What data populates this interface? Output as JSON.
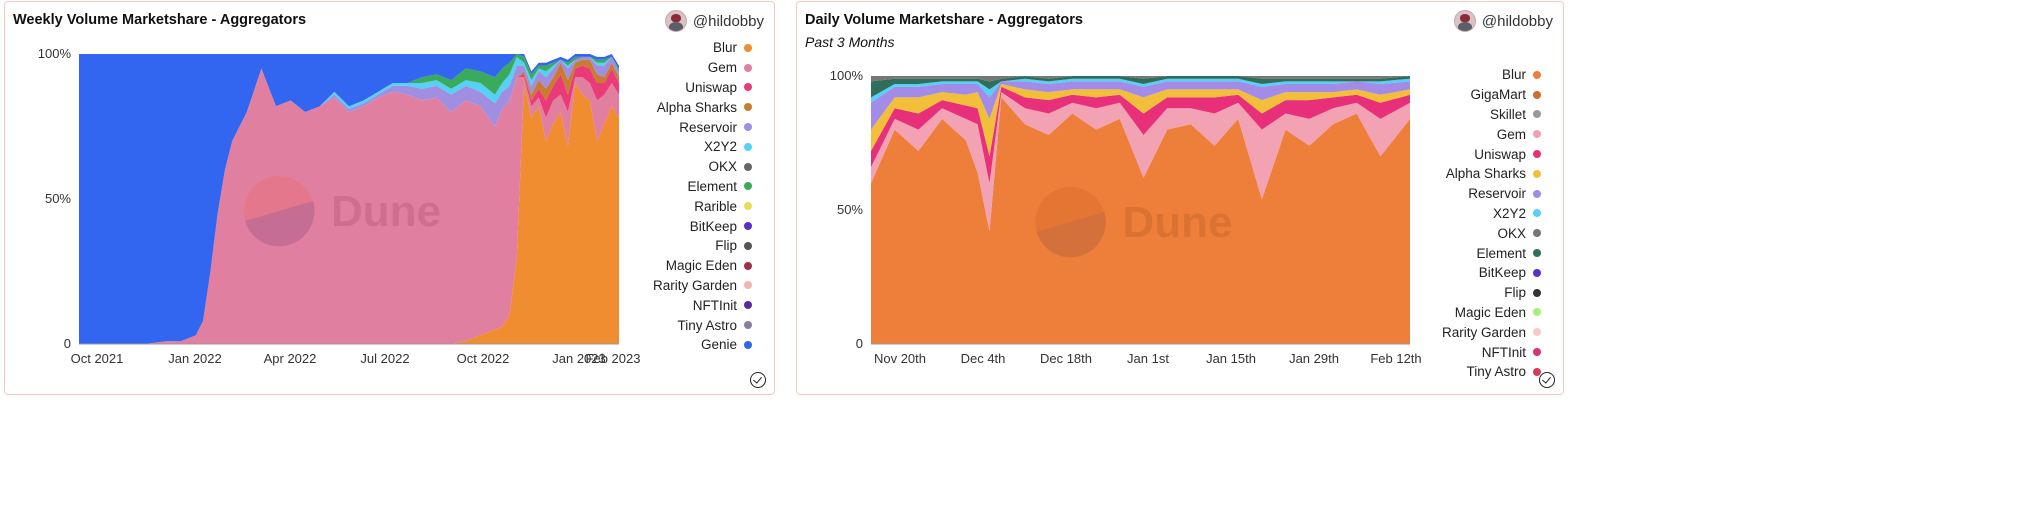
{
  "charts": [
    {
      "title": "Weekly Volume Marketshare - Aggregators",
      "subtitle": "",
      "user": "@hildobby",
      "watermark": "Dune",
      "y_ticks": [
        "100%",
        "50%",
        "0"
      ],
      "x_ticks": [
        "Oct 2021",
        "Jan 2022",
        "Apr 2022",
        "Jul 2022",
        "Oct 2022",
        "Jan 2023",
        "Feb 2023"
      ],
      "legend": [
        {
          "name": "Blur",
          "color": "#ef8d30"
        },
        {
          "name": "Gem",
          "color": "#e07fa0"
        },
        {
          "name": "Uniswap",
          "color": "#ea3b78"
        },
        {
          "name": "Alpha Sharks",
          "color": "#c97b2e"
        },
        {
          "name": "Reservoir",
          "color": "#a08ee0"
        },
        {
          "name": "X2Y2",
          "color": "#56d0f5"
        },
        {
          "name": "OKX",
          "color": "#666666"
        },
        {
          "name": "Element",
          "color": "#3aaa5c"
        },
        {
          "name": "Rarible",
          "color": "#e8dc5a"
        },
        {
          "name": "BitKeep",
          "color": "#5a2fc8"
        },
        {
          "name": "Flip",
          "color": "#555555"
        },
        {
          "name": "Magic Eden",
          "color": "#a0304a"
        },
        {
          "name": "Rarity Garden",
          "color": "#f4b2b2"
        },
        {
          "name": "NFTInit",
          "color": "#5a2a9a"
        },
        {
          "name": "Tiny Astro",
          "color": "#8a7ea0"
        },
        {
          "name": "Genie",
          "color": "#3366f0"
        }
      ]
    },
    {
      "title": "Daily Volume Marketshare - Aggregators",
      "subtitle": "Past 3 Months",
      "user": "@hildobby",
      "watermark": "Dune",
      "y_ticks": [
        "100%",
        "50%",
        "0"
      ],
      "x_ticks": [
        "Nov 20th",
        "Dec 4th",
        "Dec 18th",
        "Jan 1st",
        "Jan 15th",
        "Jan 29th",
        "Feb 12th"
      ],
      "legend": [
        {
          "name": "Blur",
          "color": "#ee7f3a"
        },
        {
          "name": "GigaMart",
          "color": "#d06c30"
        },
        {
          "name": "Skillet",
          "color": "#999999"
        },
        {
          "name": "Gem",
          "color": "#f2a2b2"
        },
        {
          "name": "Uniswap",
          "color": "#e8307a"
        },
        {
          "name": "Alpha Sharks",
          "color": "#f2bf3a"
        },
        {
          "name": "Reservoir",
          "color": "#a28ce8"
        },
        {
          "name": "X2Y2",
          "color": "#56d0f5"
        },
        {
          "name": "OKX",
          "color": "#777777"
        },
        {
          "name": "Element",
          "color": "#2f6e5a"
        },
        {
          "name": "BitKeep",
          "color": "#5a2fc8"
        },
        {
          "name": "Flip",
          "color": "#333333"
        },
        {
          "name": "Magic Eden",
          "color": "#a6f07a"
        },
        {
          "name": "Rarity Garden",
          "color": "#f8c8c8"
        },
        {
          "name": "NFTInit",
          "color": "#d8307a"
        },
        {
          "name": "Tiny Astro",
          "color": "#d83a5a"
        }
      ]
    }
  ],
  "chart_data": [
    {
      "type": "area",
      "stacked": true,
      "normalized": true,
      "title": "Weekly Volume Marketshare - Aggregators",
      "xlabel": "",
      "ylabel": "",
      "ylim": [
        0,
        100
      ],
      "x_range": [
        "2021-09-13",
        "2023-02-13"
      ],
      "x_ticks": [
        "Oct 2021",
        "Jan 2022",
        "Apr 2022",
        "Jul 2022",
        "Oct 2022",
        "Jan 2023",
        "Feb 2023"
      ],
      "x": [
        "2021-09-13",
        "2021-10-04",
        "2021-10-25",
        "2021-11-15",
        "2021-12-06",
        "2021-12-20",
        "2022-01-03",
        "2022-01-10",
        "2022-01-17",
        "2022-01-24",
        "2022-01-31",
        "2022-02-07",
        "2022-02-14",
        "2022-02-21",
        "2022-03-07",
        "2022-03-21",
        "2022-04-04",
        "2022-04-18",
        "2022-05-02",
        "2022-05-16",
        "2022-05-30",
        "2022-06-13",
        "2022-06-27",
        "2022-07-11",
        "2022-07-25",
        "2022-08-08",
        "2022-08-22",
        "2022-09-05",
        "2022-09-19",
        "2022-10-03",
        "2022-10-17",
        "2022-10-24",
        "2022-10-31",
        "2022-11-07",
        "2022-11-14",
        "2022-11-21",
        "2022-11-28",
        "2022-12-05",
        "2022-12-12",
        "2022-12-19",
        "2022-12-26",
        "2023-01-02",
        "2023-01-09",
        "2023-01-16",
        "2023-01-23",
        "2023-01-30",
        "2023-02-06",
        "2023-02-13"
      ],
      "series": [
        {
          "name": "Blur",
          "values": [
            0,
            0,
            0,
            0,
            0,
            0,
            0,
            0,
            0,
            0,
            0,
            0,
            0,
            0,
            0,
            0,
            0,
            0,
            0,
            0,
            0,
            0,
            0,
            0,
            0,
            0,
            0,
            0,
            1,
            3,
            5,
            6,
            10,
            30,
            90,
            78,
            82,
            70,
            76,
            80,
            68,
            90,
            86,
            84,
            70,
            76,
            82,
            78
          ]
        },
        {
          "name": "Gem",
          "values": [
            0,
            0,
            0,
            0,
            1,
            1,
            3,
            8,
            25,
            45,
            60,
            70,
            75,
            80,
            95,
            82,
            84,
            80,
            82,
            85,
            80,
            82,
            85,
            87,
            86,
            84,
            85,
            80,
            83,
            79,
            70,
            75,
            74,
            62,
            2,
            4,
            3,
            8,
            8,
            6,
            12,
            2,
            6,
            6,
            14,
            10,
            8,
            8
          ]
        },
        {
          "name": "Uniswap",
          "values": [
            0,
            0,
            0,
            0,
            0,
            0,
            0,
            0,
            0,
            0,
            0,
            0,
            0,
            0,
            0,
            0,
            0,
            0,
            0,
            0,
            0,
            0,
            0,
            0,
            0,
            0,
            0,
            0,
            0,
            0,
            0,
            0,
            0,
            0,
            1,
            2,
            3,
            6,
            5,
            7,
            6,
            3,
            4,
            5,
            6,
            4,
            5,
            4
          ]
        },
        {
          "name": "Alpha Sharks",
          "values": [
            0,
            0,
            0,
            0,
            0,
            0,
            0,
            0,
            0,
            0,
            0,
            0,
            0,
            0,
            0,
            0,
            0,
            0,
            0,
            0,
            0,
            0,
            0,
            0,
            0,
            0,
            0,
            0,
            0,
            0,
            0,
            0,
            0,
            0,
            1,
            2,
            3,
            4,
            3,
            4,
            5,
            2,
            2,
            3,
            3,
            2,
            2,
            2
          ]
        },
        {
          "name": "Reservoir",
          "values": [
            0,
            0,
            0,
            0,
            0,
            0,
            0,
            0,
            0,
            0,
            0,
            0,
            0,
            0,
            0,
            0,
            0,
            0,
            0,
            1,
            1,
            1,
            1,
            2,
            3,
            4,
            4,
            6,
            5,
            5,
            8,
            6,
            5,
            4,
            2,
            3,
            3,
            4,
            3,
            1,
            4,
            1,
            1,
            1,
            3,
            4,
            2,
            2
          ]
        },
        {
          "name": "X2Y2",
          "values": [
            0,
            0,
            0,
            0,
            0,
            0,
            0,
            0,
            0,
            0,
            0,
            0,
            0,
            0,
            0,
            0,
            0,
            0,
            0,
            1,
            1,
            1,
            1,
            1,
            1,
            2,
            2,
            2,
            2,
            3,
            3,
            3,
            4,
            3,
            1,
            2,
            1,
            2,
            1,
            0,
            1,
            0,
            0,
            0,
            1,
            1,
            0,
            0
          ]
        },
        {
          "name": "Element",
          "values": [
            0,
            0,
            0,
            0,
            0,
            0,
            0,
            0,
            0,
            0,
            0,
            0,
            0,
            0,
            0,
            0,
            0,
            0,
            0,
            0,
            0,
            0,
            0,
            0,
            0,
            2,
            2,
            3,
            4,
            4,
            6,
            5,
            4,
            3,
            2,
            2,
            1,
            2,
            1,
            0,
            1,
            1,
            0,
            0,
            1,
            1,
            0,
            1
          ]
        },
        {
          "name": "Genie",
          "values": [
            100,
            100,
            100,
            100,
            99,
            99,
            97,
            92,
            75,
            55,
            40,
            30,
            25,
            20,
            5,
            18,
            16,
            20,
            18,
            13,
            18,
            16,
            13,
            10,
            10,
            8,
            7,
            9,
            5,
            6,
            8,
            5,
            3,
            3,
            1,
            1,
            1,
            1,
            1,
            1,
            1,
            1,
            1,
            1,
            1,
            1,
            1,
            1
          ]
        }
      ]
    },
    {
      "type": "area",
      "stacked": true,
      "normalized": true,
      "title": "Daily Volume Marketshare - Aggregators",
      "subtitle": "Past 3 Months",
      "xlabel": "",
      "ylabel": "",
      "ylim": [
        0,
        100
      ],
      "x_range": [
        "2022-11-16",
        "2023-02-15"
      ],
      "x_ticks": [
        "Nov 20th",
        "Dec 4th",
        "Dec 18th",
        "Jan 1st",
        "Jan 15th",
        "Jan 29th",
        "Feb 12th"
      ],
      "x": [
        "2022-11-16",
        "2022-11-20",
        "2022-11-24",
        "2022-11-28",
        "2022-12-02",
        "2022-12-04",
        "2022-12-06",
        "2022-12-08",
        "2022-12-12",
        "2022-12-16",
        "2022-12-20",
        "2022-12-24",
        "2022-12-28",
        "2023-01-01",
        "2023-01-05",
        "2023-01-09",
        "2023-01-13",
        "2023-01-17",
        "2023-01-21",
        "2023-01-25",
        "2023-01-29",
        "2023-02-02",
        "2023-02-06",
        "2023-02-10",
        "2023-02-15"
      ],
      "series": [
        {
          "name": "Blur",
          "values": [
            60,
            80,
            72,
            84,
            76,
            64,
            42,
            92,
            82,
            78,
            86,
            80,
            84,
            62,
            80,
            82,
            74,
            84,
            54,
            80,
            74,
            82,
            86,
            70,
            84
          ]
        },
        {
          "name": "Gem",
          "values": [
            6,
            4,
            8,
            4,
            8,
            18,
            18,
            2,
            6,
            8,
            4,
            8,
            6,
            16,
            8,
            6,
            12,
            6,
            26,
            6,
            10,
            6,
            4,
            14,
            6
          ]
        },
        {
          "name": "Uniswap",
          "values": [
            6,
            4,
            6,
            3,
            5,
            6,
            10,
            2,
            4,
            5,
            3,
            4,
            3,
            8,
            4,
            4,
            6,
            3,
            6,
            5,
            7,
            4,
            3,
            6,
            3
          ]
        },
        {
          "name": "Alpha Sharks",
          "values": [
            8,
            4,
            6,
            3,
            4,
            6,
            14,
            1,
            3,
            3,
            2,
            3,
            2,
            6,
            3,
            3,
            3,
            2,
            5,
            3,
            3,
            2,
            2,
            3,
            2
          ]
        },
        {
          "name": "Reservoir",
          "values": [
            10,
            4,
            4,
            3,
            4,
            3,
            8,
            1,
            3,
            3,
            3,
            3,
            3,
            4,
            3,
            3,
            3,
            3,
            5,
            3,
            3,
            3,
            3,
            4,
            3
          ]
        },
        {
          "name": "X2Y2",
          "values": [
            2,
            1,
            1,
            1,
            1,
            1,
            3,
            0,
            1,
            1,
            1,
            1,
            1,
            1,
            1,
            1,
            1,
            1,
            1,
            1,
            1,
            1,
            0,
            1,
            1
          ]
        },
        {
          "name": "Element",
          "values": [
            6,
            2,
            2,
            1,
            1,
            1,
            3,
            1,
            1,
            1,
            1,
            1,
            1,
            2,
            1,
            1,
            1,
            1,
            2,
            1,
            1,
            1,
            1,
            1,
            1
          ]
        },
        {
          "name": "OKX",
          "values": [
            2,
            1,
            1,
            1,
            1,
            1,
            2,
            1,
            0,
            1,
            0,
            0,
            0,
            1,
            0,
            0,
            0,
            0,
            1,
            1,
            1,
            1,
            1,
            1,
            0
          ]
        }
      ]
    }
  ]
}
